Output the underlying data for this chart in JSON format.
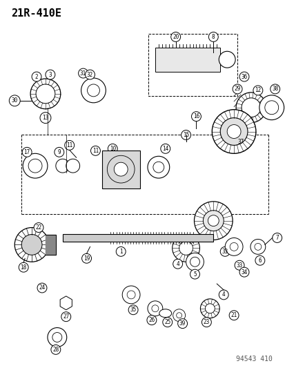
{
  "title": "21R-410E",
  "footer": "94543 410",
  "bg_color": "#ffffff",
  "fg_color": "#000000",
  "title_fontsize": 11,
  "footer_fontsize": 7,
  "fig_width": 4.14,
  "fig_height": 5.33
}
